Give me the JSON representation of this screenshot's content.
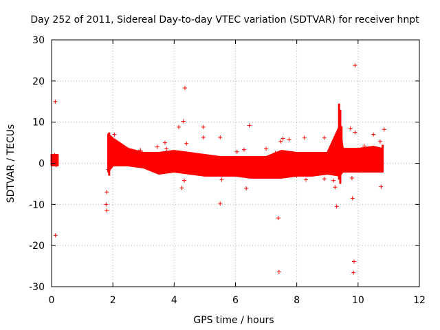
{
  "chart_data": {
    "type": "scatter",
    "title": "Day 252 of 2011, Sidereal Day-to-day VTEC variation (SDTVAR) for receiver hnpt",
    "xlabel": "GPS time / hours",
    "ylabel": "SDTVAR / TECUs",
    "xlim": [
      0,
      12
    ],
    "ylim": [
      -30,
      30
    ],
    "xticks": [
      0,
      2,
      4,
      6,
      8,
      10,
      12
    ],
    "yticks": [
      -30,
      -20,
      -10,
      0,
      10,
      20,
      30
    ],
    "grid": true,
    "marker": "+",
    "color": "#ff0000",
    "dense_band": [
      {
        "x": 0.0,
        "lo": -0.5,
        "hi": 2.0
      },
      {
        "x": 0.2,
        "lo": -0.5,
        "hi": 2.0
      },
      {
        "x": 1.85,
        "lo": -2.0,
        "hi": 7.0
      },
      {
        "x": 2.0,
        "lo": -0.5,
        "hi": 6.0
      },
      {
        "x": 2.5,
        "lo": -0.5,
        "hi": 3.5
      },
      {
        "x": 3.0,
        "lo": -1.0,
        "hi": 2.5
      },
      {
        "x": 3.5,
        "lo": -2.5,
        "hi": 2.5
      },
      {
        "x": 4.0,
        "lo": -2.0,
        "hi": 3.0
      },
      {
        "x": 4.5,
        "lo": -2.5,
        "hi": 2.5
      },
      {
        "x": 5.0,
        "lo": -3.0,
        "hi": 2.0
      },
      {
        "x": 5.5,
        "lo": -3.0,
        "hi": 1.5
      },
      {
        "x": 6.0,
        "lo": -3.0,
        "hi": 1.5
      },
      {
        "x": 6.5,
        "lo": -3.5,
        "hi": 1.5
      },
      {
        "x": 7.0,
        "lo": -3.5,
        "hi": 1.5
      },
      {
        "x": 7.5,
        "lo": -3.5,
        "hi": 3.0
      },
      {
        "x": 8.0,
        "lo": -3.0,
        "hi": 2.5
      },
      {
        "x": 8.5,
        "lo": -3.0,
        "hi": 2.5
      },
      {
        "x": 9.0,
        "lo": -2.5,
        "hi": 2.5
      },
      {
        "x": 9.4,
        "lo": -3.0,
        "hi": 9.0
      },
      {
        "x": 9.5,
        "lo": -2.0,
        "hi": 3.5
      },
      {
        "x": 10.0,
        "lo": -2.0,
        "hi": 3.5
      },
      {
        "x": 10.5,
        "lo": -2.0,
        "hi": 4.0
      },
      {
        "x": 10.8,
        "lo": -2.0,
        "hi": 3.5
      }
    ],
    "spike_lines": [
      {
        "x": 1.88,
        "y0": -3.0,
        "y1": 7.5
      },
      {
        "x": 9.38,
        "y0": -4.0,
        "y1": 14.5
      },
      {
        "x": 9.42,
        "y0": -5.0,
        "y1": 13.0
      },
      {
        "x": 9.46,
        "y0": -2.0,
        "y1": 9.0
      },
      {
        "x": 10.8,
        "y0": -2.0,
        "y1": 4.5
      }
    ],
    "outliers": [
      [
        0.12,
        15.0
      ],
      [
        0.13,
        -17.5
      ],
      [
        0.05,
        1.2
      ],
      [
        0.1,
        2.0
      ],
      [
        0.15,
        -0.5
      ],
      [
        1.8,
        -7.0
      ],
      [
        1.78,
        -10.0
      ],
      [
        1.8,
        -11.5
      ],
      [
        1.85,
        -1.5
      ],
      [
        2.05,
        7.0
      ],
      [
        2.9,
        3.2
      ],
      [
        3.45,
        4.0
      ],
      [
        3.7,
        5.0
      ],
      [
        3.75,
        3.5
      ],
      [
        4.15,
        8.8
      ],
      [
        4.25,
        -6.0
      ],
      [
        4.3,
        10.2
      ],
      [
        4.35,
        18.3
      ],
      [
        4.33,
        -4.2
      ],
      [
        4.4,
        4.8
      ],
      [
        4.95,
        8.8
      ],
      [
        4.95,
        6.3
      ],
      [
        5.5,
        6.3
      ],
      [
        5.5,
        -9.8
      ],
      [
        5.55,
        -4.0
      ],
      [
        6.05,
        2.8
      ],
      [
        6.28,
        3.3
      ],
      [
        6.35,
        -6.1
      ],
      [
        6.45,
        9.2
      ],
      [
        7.0,
        3.5
      ],
      [
        7.3,
        2.5
      ],
      [
        7.4,
        -13.3
      ],
      [
        7.42,
        -26.4
      ],
      [
        7.48,
        5.3
      ],
      [
        7.55,
        6.0
      ],
      [
        7.75,
        5.8
      ],
      [
        8.0,
        -3.0
      ],
      [
        8.25,
        6.2
      ],
      [
        8.3,
        -4.0
      ],
      [
        8.9,
        6.2
      ],
      [
        8.9,
        -3.8
      ],
      [
        9.2,
        -4.2
      ],
      [
        9.25,
        -5.8
      ],
      [
        9.3,
        -10.5
      ],
      [
        9.35,
        4.5
      ],
      [
        9.65,
        3.0
      ],
      [
        9.75,
        8.5
      ],
      [
        9.8,
        -3.6
      ],
      [
        9.82,
        -8.5
      ],
      [
        9.85,
        -26.6
      ],
      [
        9.87,
        -23.9
      ],
      [
        9.9,
        23.8
      ],
      [
        9.9,
        7.5
      ],
      [
        10.2,
        4.2
      ],
      [
        10.5,
        7.0
      ],
      [
        10.72,
        5.3
      ],
      [
        10.75,
        -5.7
      ],
      [
        10.85,
        8.2
      ]
    ]
  }
}
